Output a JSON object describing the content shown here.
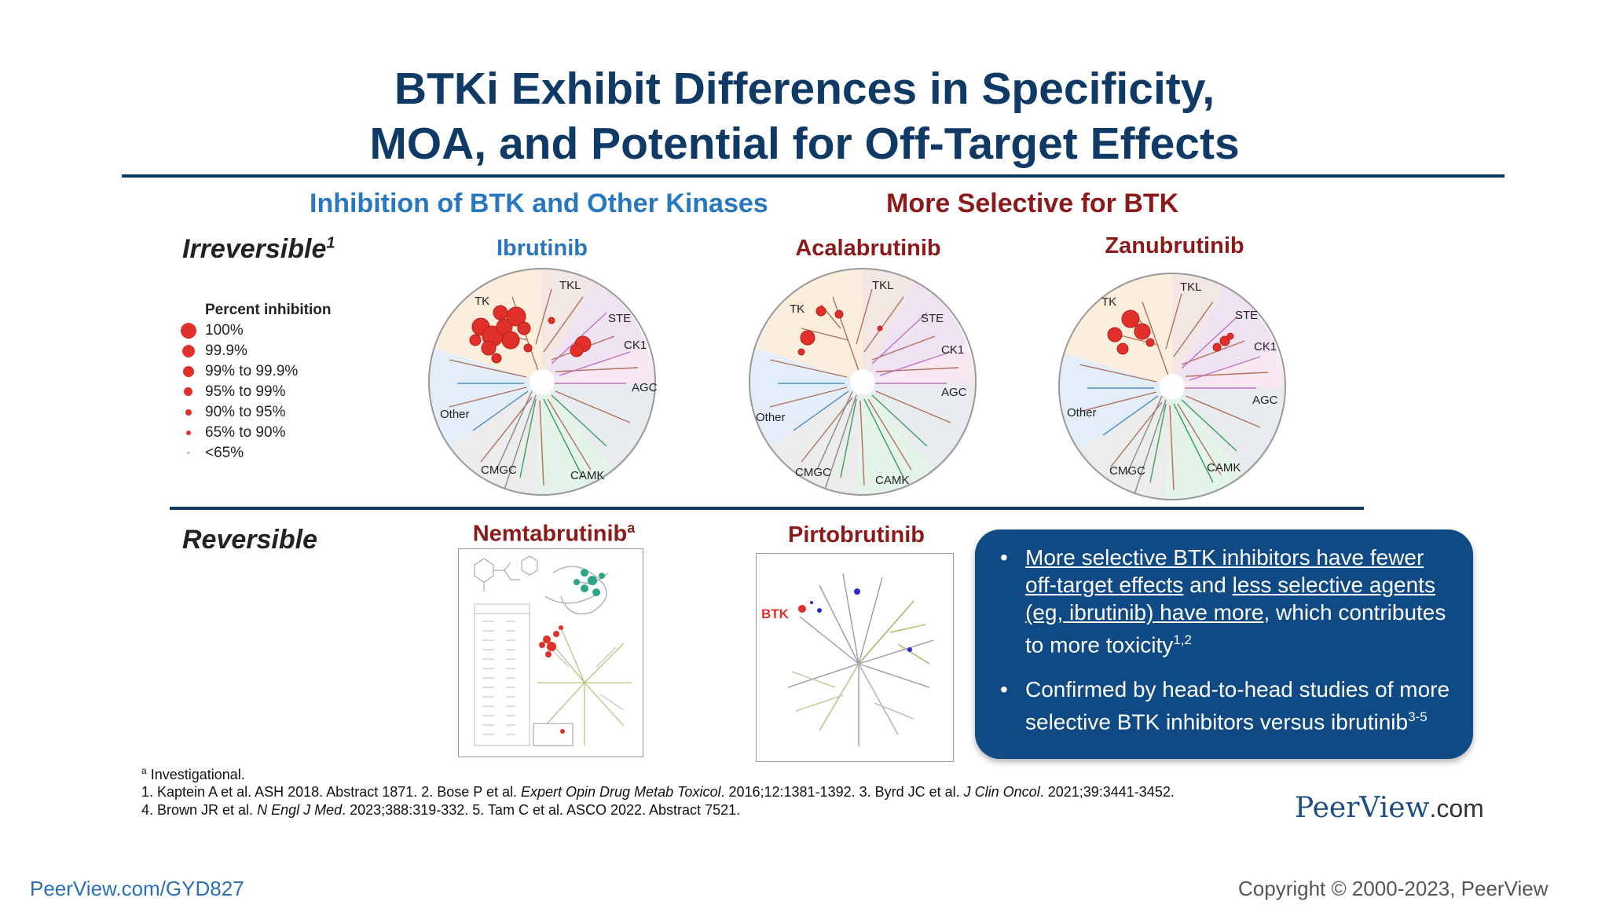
{
  "title": {
    "line1": "BTKi Exhibit Differences in Specificity,",
    "line2": "MOA, and Potential for Off-Target Effects"
  },
  "subheadings": {
    "left": "Inhibition of BTK and Other Kinases",
    "right": "More Selective for BTK"
  },
  "rows": {
    "irreversible": "Irreversible",
    "irreversible_sup": "1",
    "reversible": "Reversible"
  },
  "legend": {
    "title": "Percent inhibition",
    "items": [
      "100%",
      "99.9%",
      "99% to 99.9%",
      "95% to 99%",
      "90% to 95%",
      "65% to 90%",
      "<65%"
    ]
  },
  "drugs": {
    "ibrutinib": "Ibrutinib",
    "acalabrutinib": "Acalabrutinib",
    "zanubrutinib": "Zanubrutinib",
    "nemtabrutinib": "Nemtabrutinib",
    "nemtabrutinib_sup": "a",
    "pirtobrutinib": "Pirtobrutinib"
  },
  "kinome_labels": {
    "tk": "TK",
    "tkl": "TKL",
    "ste": "STE",
    "ck1": "CK1",
    "agc": "AGC",
    "camk": "CAMK",
    "cmgc": "CMGC",
    "other": "Other"
  },
  "pirtobrutinib_label": "BTK",
  "callout": {
    "b1_u1": "More selective BTK inhibitors have fewer off-target effects",
    "b1_t1": " and ",
    "b1_u2": "less selective agents (eg, ibrutinib) have more",
    "b1_t2": ", which contributes to more toxicity",
    "b1_sup": "1,2",
    "b2_text": "Confirmed by head-to-head studies of more selective BTK inhibitors versus ibrutinib",
    "b2_sup": "3-5"
  },
  "footnotes": {
    "a_sup": "a",
    "a_text": " Investigational.",
    "ref1a": "1. Kaptein A et al. ASH 2018. Abstract 1871. 2. Bose P et al. ",
    "ref1b": "Expert Opin Drug Metab Toxicol",
    "ref1c": ". 2016;12:1381-1392. 3. Byrd JC et al. ",
    "ref1d": "J Clin Oncol",
    "ref1e": ". 2021;39:3441-3452.",
    "ref2a": "4. Brown JR et al. ",
    "ref2b": "N Engl J Med",
    "ref2c": ". 2023;388:319-332. 5. Tam C et al. ASCO 2022. Abstract 7521."
  },
  "brand": {
    "name": "PeerView",
    "suffix": ".com"
  },
  "footer": {
    "url": "PeerView.com/GYD827",
    "copyright": "Copyright © 2000-2023, PeerView"
  },
  "colors": {
    "navy": "#0f3a66",
    "blue": "#2878c0",
    "darkred": "#8c1a1a",
    "dot_red": "#e1302a",
    "callout_bg": "#0f4a85"
  }
}
